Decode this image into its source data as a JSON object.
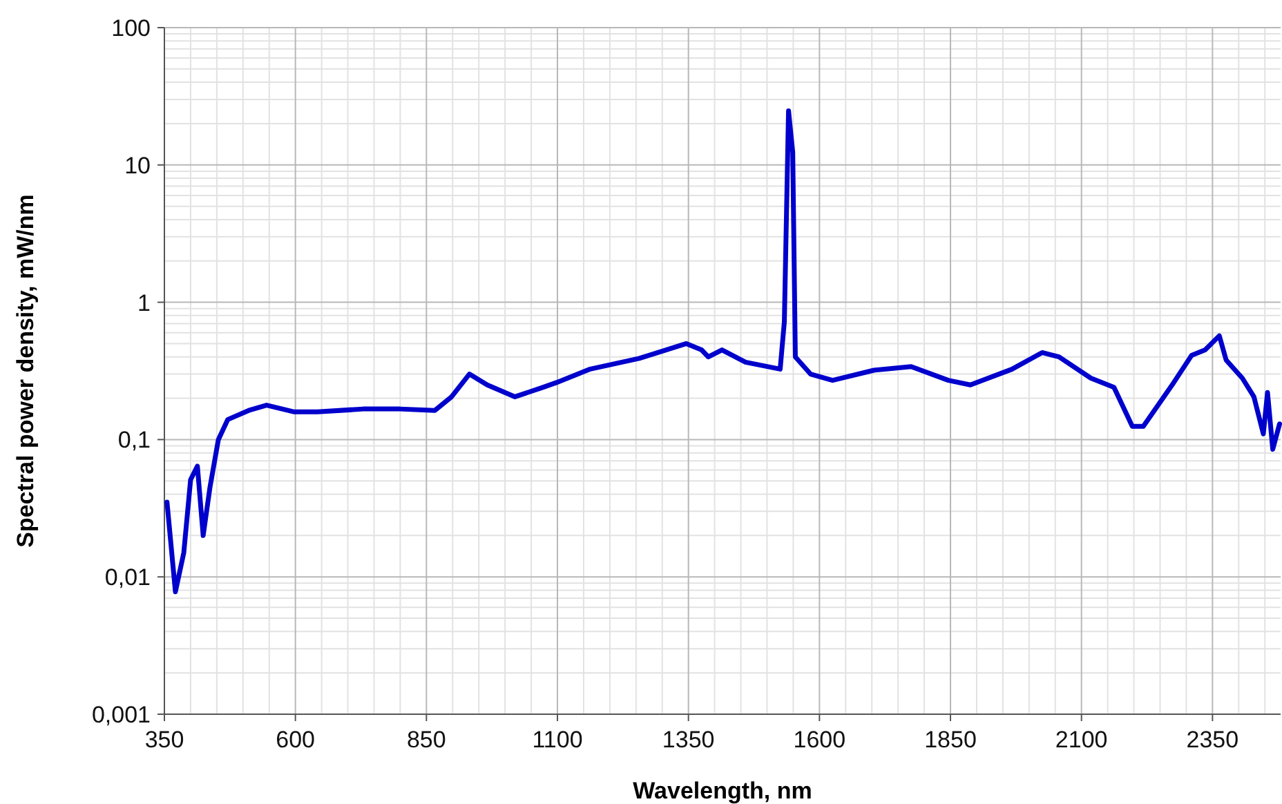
{
  "chart_data": {
    "type": "line",
    "xlabel": "Wavelength, nm",
    "ylabel": "Spectral power density, mW/nm",
    "log": "y",
    "grid": true,
    "marker": "none",
    "line_style": "solid",
    "xlim": [
      350,
      2480
    ],
    "xticks": [
      350,
      600,
      850,
      1100,
      1350,
      1600,
      1850,
      2100,
      2350
    ],
    "ylim": [
      0.001,
      100
    ],
    "yticks": [
      {
        "value": 0.001,
        "label": "0,001"
      },
      {
        "value": 0.01,
        "label": "0,01"
      },
      {
        "value": 0.1,
        "label": "0,1"
      },
      1,
      10,
      100
    ],
    "x": [
      355,
      371,
      387,
      400,
      413,
      424,
      437,
      453,
      471,
      511,
      545,
      598,
      642,
      729,
      800,
      866,
      898,
      932,
      966,
      1019,
      1072,
      1098,
      1161,
      1256,
      1346,
      1375,
      1388,
      1414,
      1459,
      1525,
      1533,
      1541,
      1549,
      1554,
      1583,
      1625,
      1704,
      1775,
      1846,
      1888,
      1967,
      2025,
      2057,
      2118,
      2162,
      2197,
      2218,
      2276,
      2310,
      2336,
      2363,
      2376,
      2407,
      2429,
      2447,
      2455,
      2465,
      2478
    ],
    "series": [
      {
        "color": "#0000cc",
        "values": [
          0.035,
          0.0078,
          0.015,
          0.051,
          0.064,
          0.02,
          0.045,
          0.1,
          0.14,
          0.163,
          0.178,
          0.159,
          0.159,
          0.167,
          0.167,
          0.163,
          0.205,
          0.3,
          0.25,
          0.205,
          0.24,
          0.26,
          0.325,
          0.39,
          0.5,
          0.45,
          0.4,
          0.45,
          0.366,
          0.326,
          0.72,
          24.8,
          12.4,
          0.4,
          0.3,
          0.27,
          0.32,
          0.34,
          0.27,
          0.25,
          0.325,
          0.43,
          0.4,
          0.28,
          0.24,
          0.125,
          0.125,
          0.26,
          0.41,
          0.45,
          0.57,
          0.38,
          0.28,
          0.205,
          0.11,
          0.22,
          0.085,
          0.13
        ]
      }
    ]
  }
}
